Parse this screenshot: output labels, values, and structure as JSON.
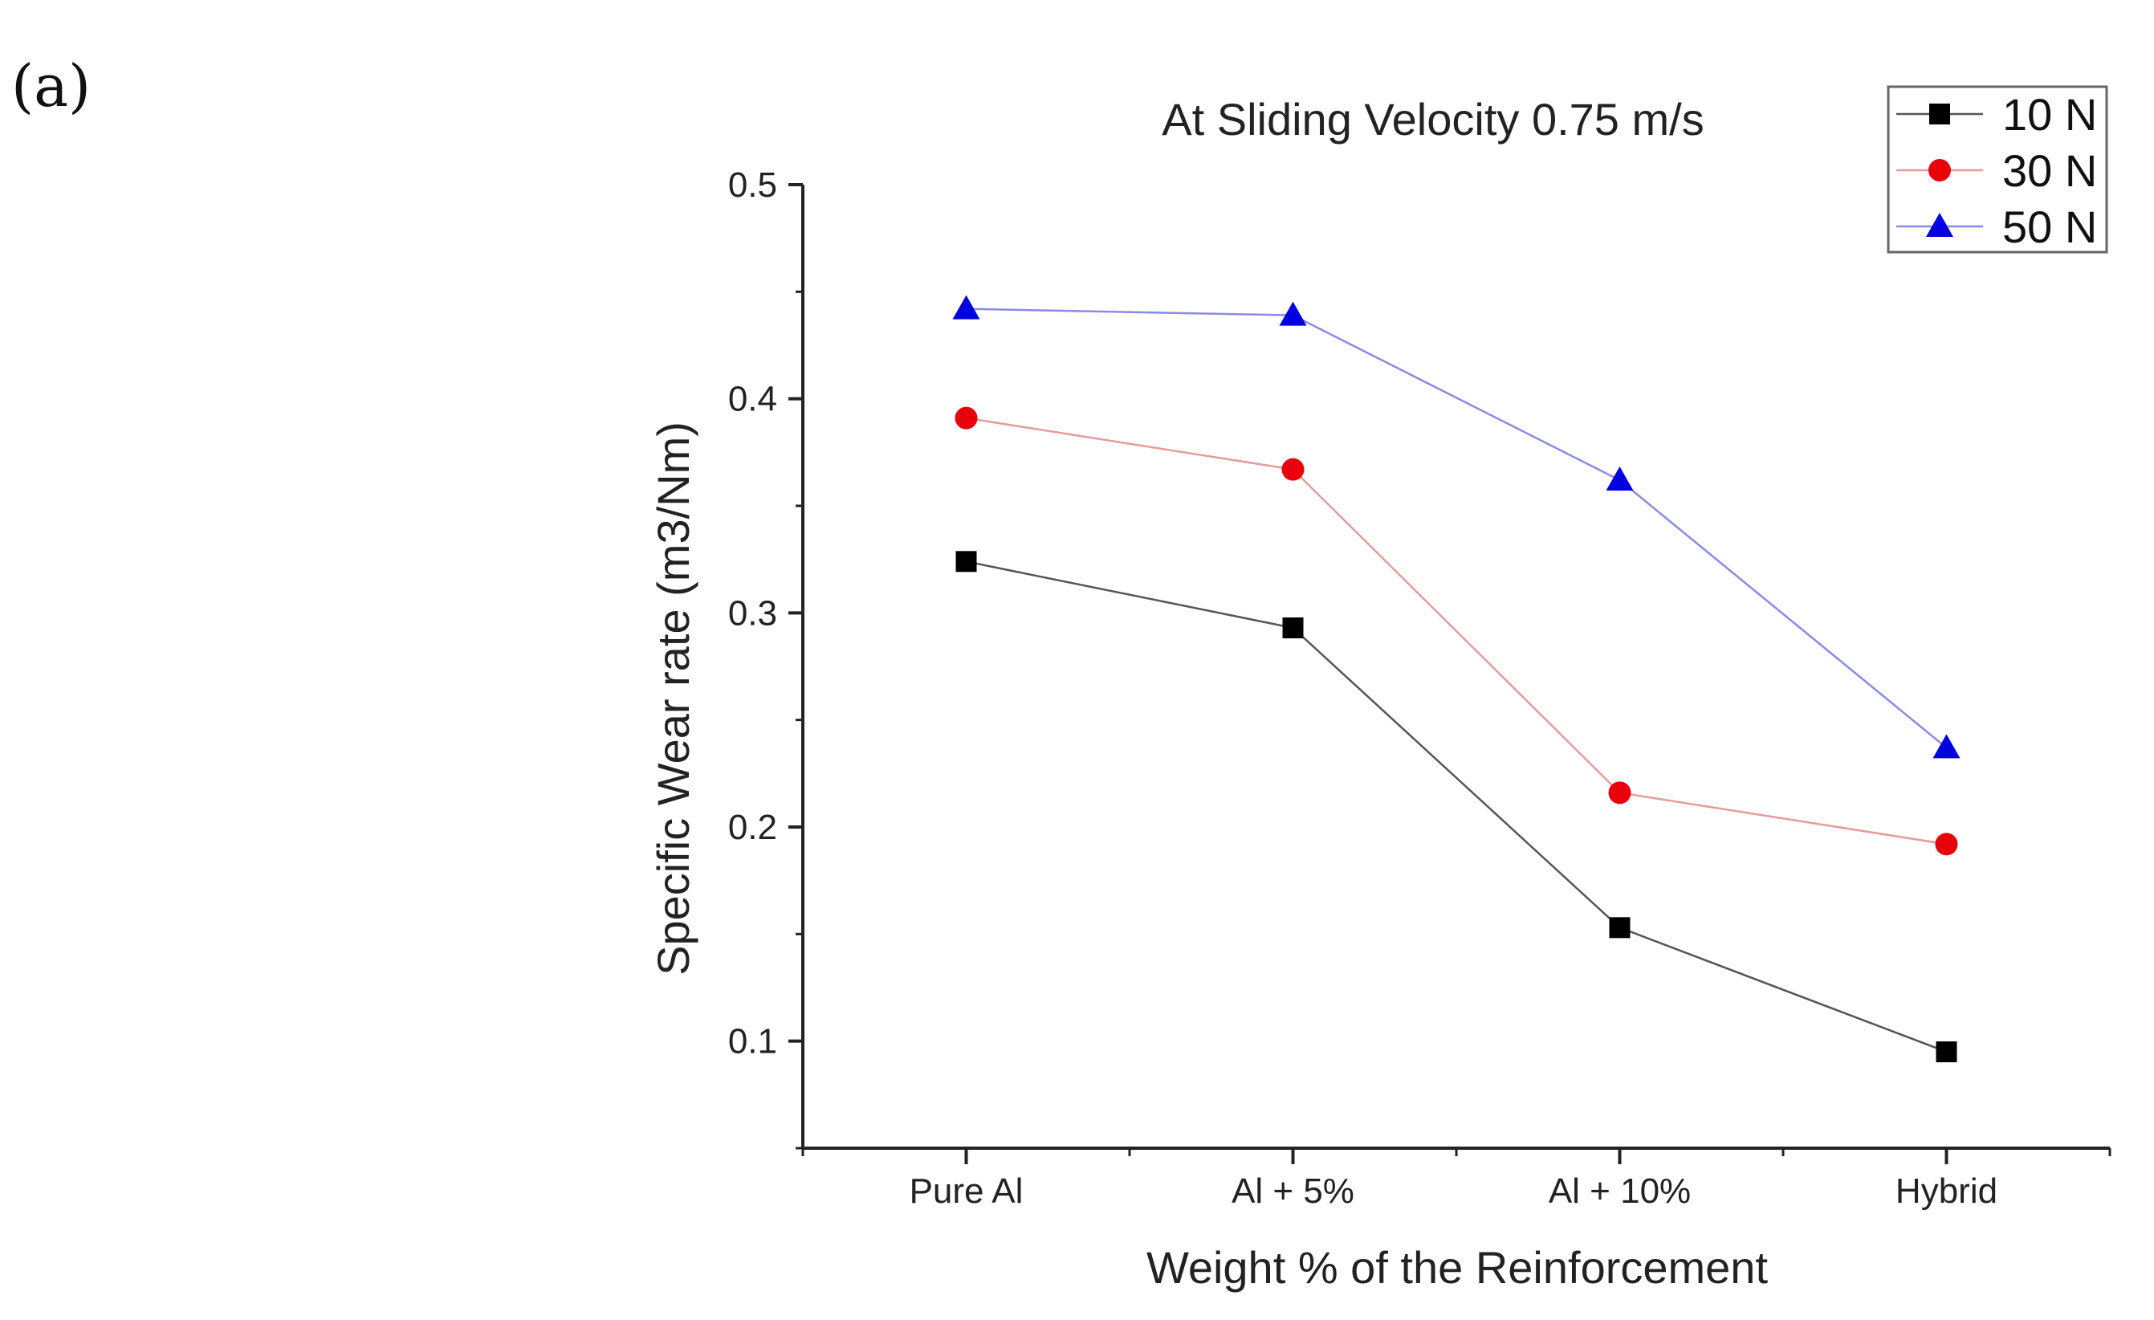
{
  "panel_label": "(a)",
  "chart_data": {
    "type": "line",
    "title": "At Sliding Velocity 0.75 m/s",
    "xlabel": "Weight % of the Reinforcement",
    "ylabel": "Specific Wear rate (m3/Nm)",
    "categories": [
      "Pure Al",
      "Al + 5%",
      "Al + 10%",
      "Hybrid"
    ],
    "ylim": [
      0.05,
      0.5
    ],
    "yticks": [
      0.1,
      0.2,
      0.3,
      0.4,
      0.5
    ],
    "ytick_labels": [
      "0.1",
      "0.2",
      "0.3",
      "0.4",
      "0.5"
    ],
    "legend_position": "top-right",
    "grid": false,
    "series": [
      {
        "name": "10 N",
        "marker": "square",
        "marker_color": "#000000",
        "line_color": "#555555",
        "values": [
          0.324,
          0.293,
          0.153,
          0.095
        ]
      },
      {
        "name": "30 N",
        "marker": "circle",
        "marker_color": "#e8000b",
        "line_color": "#e89a9a",
        "values": [
          0.391,
          0.367,
          0.216,
          0.192
        ]
      },
      {
        "name": "50 N",
        "marker": "triangle",
        "marker_color": "#0000e0",
        "line_color": "#8a8ae6",
        "values": [
          0.442,
          0.439,
          0.362,
          0.237
        ]
      }
    ]
  }
}
